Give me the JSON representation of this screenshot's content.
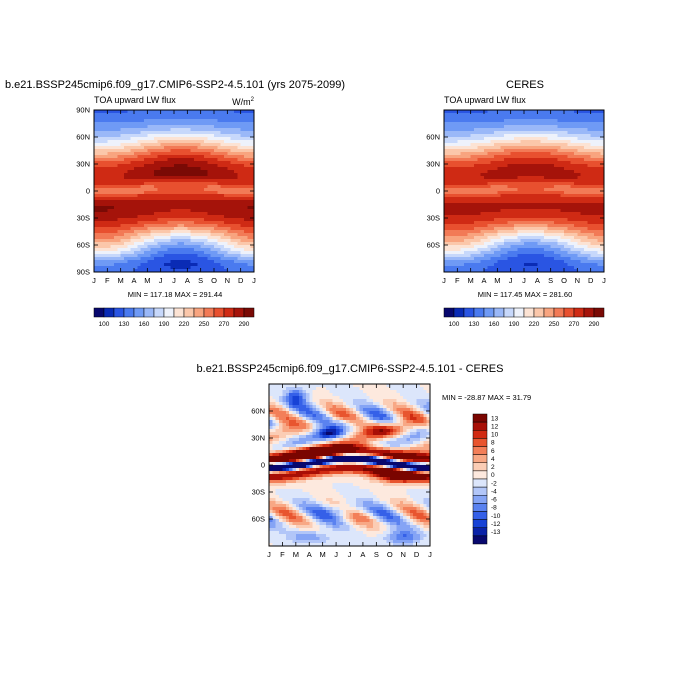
{
  "palettes": {
    "flux": [
      "#08086e",
      "#0a2bb5",
      "#2a55e3",
      "#4a7aef",
      "#6f9af5",
      "#9ab8f8",
      "#c7d8fb",
      "#eef2fb",
      "#fce3d4",
      "#fbc7aa",
      "#f8a47f",
      "#f27a56",
      "#e8502f",
      "#cf2a14",
      "#a5130a",
      "#7a0a05"
    ],
    "diff": [
      "#08086e",
      "#0a22a8",
      "#1742d6",
      "#3560e8",
      "#5a82f0",
      "#85a4f5",
      "#b2c6f8",
      "#dce6fb",
      "#fde9de",
      "#fbcdb5",
      "#f8a885",
      "#f37f59",
      "#e8552f",
      "#d12a12",
      "#a80f06",
      "#7a0500"
    ]
  },
  "chart_data": [
    {
      "type": "heatmap",
      "title": "b.e21.BSSP245cmip6.f09_g17.CMIP6-SSP2-4.5.101 (yrs 2075-2099)",
      "left_label": "TOA upward LW flux",
      "units_base": "W/m",
      "units_exp": "2",
      "x_ticks": [
        "J",
        "F",
        "M",
        "A",
        "M",
        "J",
        "J",
        "A",
        "S",
        "O",
        "N",
        "D",
        "J"
      ],
      "y_ticks": [
        "90N",
        "60N",
        "30N",
        "0",
        "30S",
        "60S",
        "90S"
      ],
      "stats": "MIN = 117.18  MAX = 291.44",
      "colorbar_labels": [
        "100",
        "130",
        "160",
        "190",
        "220",
        "250",
        "270",
        "290"
      ],
      "zmin": 100,
      "zmax": 292,
      "palette": "flux",
      "field": "model"
    },
    {
      "type": "heatmap",
      "title": "CERES",
      "left_label": "TOA upward LW flux",
      "x_ticks": [
        "J",
        "F",
        "M",
        "A",
        "M",
        "J",
        "J",
        "A",
        "S",
        "O",
        "N",
        "D",
        "J"
      ],
      "y_ticks": [
        "60N",
        "30N",
        "0",
        "30S",
        "60S"
      ],
      "stats": "MIN = 117.45  MAX = 281.60",
      "colorbar_labels": [
        "100",
        "130",
        "160",
        "190",
        "220",
        "250",
        "270",
        "290"
      ],
      "zmin": 100,
      "zmax": 292,
      "palette": "flux",
      "field": "obs"
    },
    {
      "type": "heatmap",
      "title": "b.e21.BSSP245cmip6.f09_g17.CMIP6-SSP2-4.5.101 - CERES",
      "x_ticks": [
        "J",
        "F",
        "M",
        "A",
        "M",
        "J",
        "J",
        "A",
        "S",
        "O",
        "N",
        "D",
        "J"
      ],
      "y_ticks": [
        "60N",
        "30N",
        "0",
        "30S",
        "60S"
      ],
      "stats": "MIN = -28.87  MAX =  31.79",
      "colorbar_labels": [
        "13",
        "12",
        "10",
        "8",
        "6",
        "4",
        "2",
        "0",
        "-2",
        "-4",
        "-6",
        "-8",
        "-10",
        "-12",
        "-13"
      ],
      "zmin": -14,
      "zmax": 14,
      "palette": "diff",
      "field": "diff"
    }
  ]
}
